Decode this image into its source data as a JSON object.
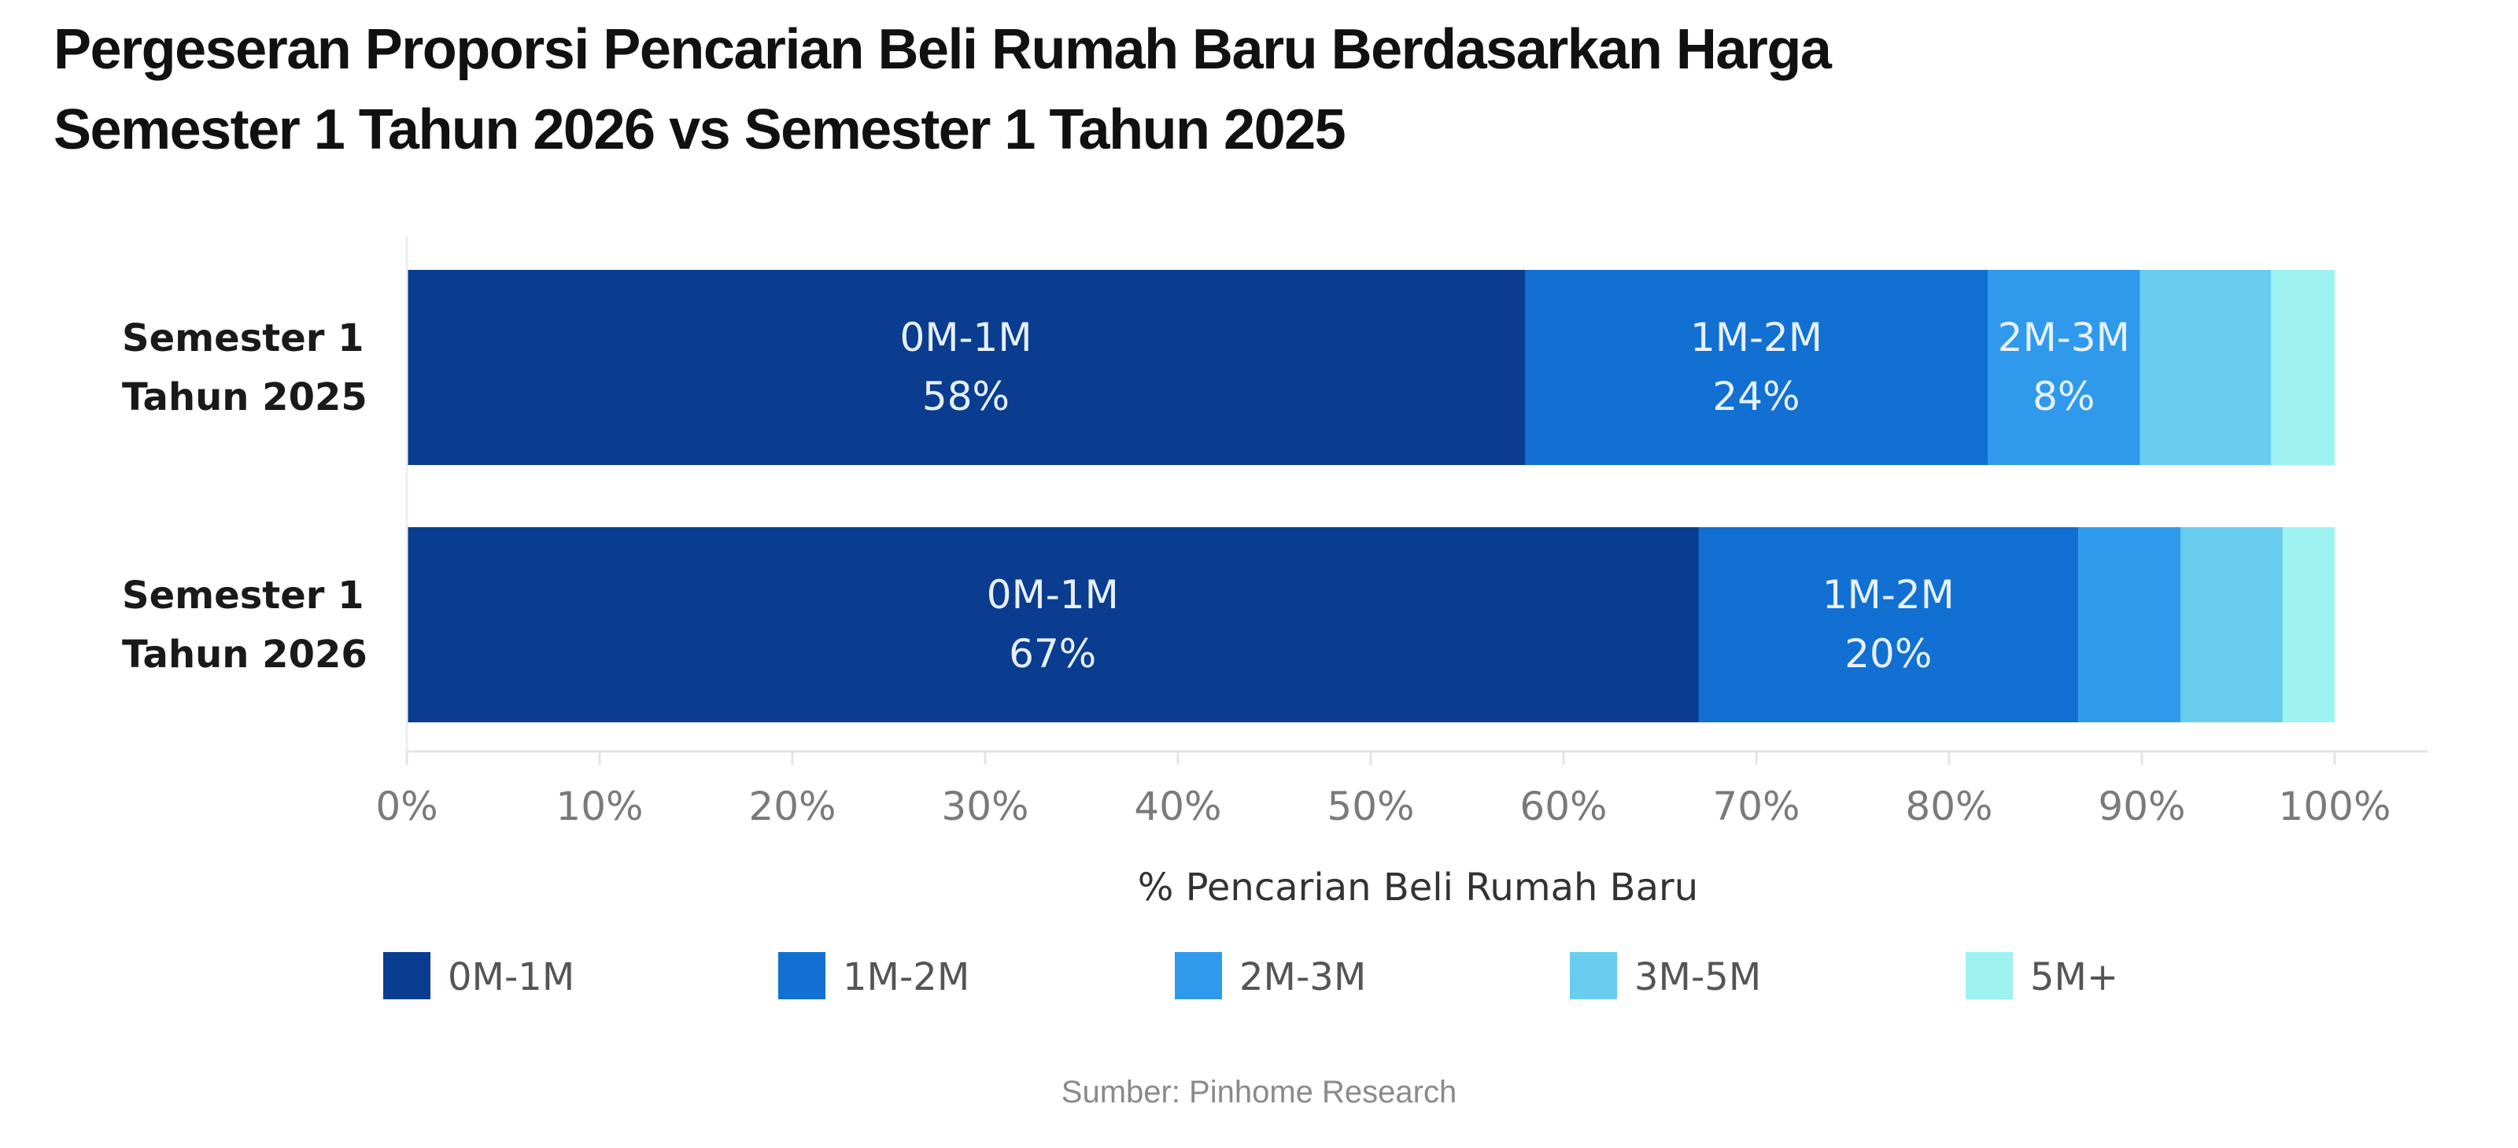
{
  "title": "Pergeseran Proporsi  Pencarian Beli Rumah Baru Berdasarkan Harga",
  "subtitle": "Semester 1 Tahun 2026 vs Semester 1 Tahun 2025",
  "source": "Sumber: Pinhome Research",
  "colors": {
    "0M-1M": "#0a3d8f",
    "1M-2M": "#1170d1",
    "2M-3M": "#2f9aec",
    "3M-5M": "#68cdee",
    "5M+": "#9ef2ef"
  },
  "chart_data": {
    "type": "bar",
    "orientation": "horizontal",
    "stacked": true,
    "categories": [
      [
        "Semester 1",
        "Tahun 2025"
      ],
      [
        "Semester 1",
        "Tahun 2026"
      ]
    ],
    "segments": [
      "0M-1M",
      "1M-2M",
      "2M-3M",
      "3M-5M",
      "5M+"
    ],
    "series": [
      {
        "name": "0M-1M",
        "values": [
          58,
          67
        ],
        "labels": [
          "58%",
          "67%"
        ]
      },
      {
        "name": "1M-2M",
        "values": [
          24,
          19.7
        ],
        "labels": [
          "24%",
          "20%"
        ]
      },
      {
        "name": "2M-3M",
        "values": [
          7.9,
          5.3
        ],
        "labels": [
          "8%",
          null
        ]
      },
      {
        "name": "3M-5M",
        "values": [
          6.8,
          5.3
        ],
        "labels": [
          null,
          null
        ]
      },
      {
        "name": "5M+",
        "values": [
          3.3,
          2.7
        ],
        "labels": [
          null,
          null
        ]
      }
    ],
    "xlabel": "% Pencarian Beli Rumah Baru",
    "ylabel": "",
    "xlim": [
      0,
      100
    ],
    "xticks": [
      0,
      10,
      20,
      30,
      40,
      50,
      60,
      70,
      80,
      90,
      100
    ],
    "xtick_labels": [
      "0%",
      "10%",
      "20%",
      "30%",
      "40%",
      "50%",
      "60%",
      "70%",
      "80%",
      "90%",
      "100%"
    ],
    "grid": false,
    "legend": {
      "position": "bottom",
      "entries": [
        "0M-1M",
        "1M-2M",
        "2M-3M",
        "3M-5M",
        "5M+"
      ]
    }
  }
}
